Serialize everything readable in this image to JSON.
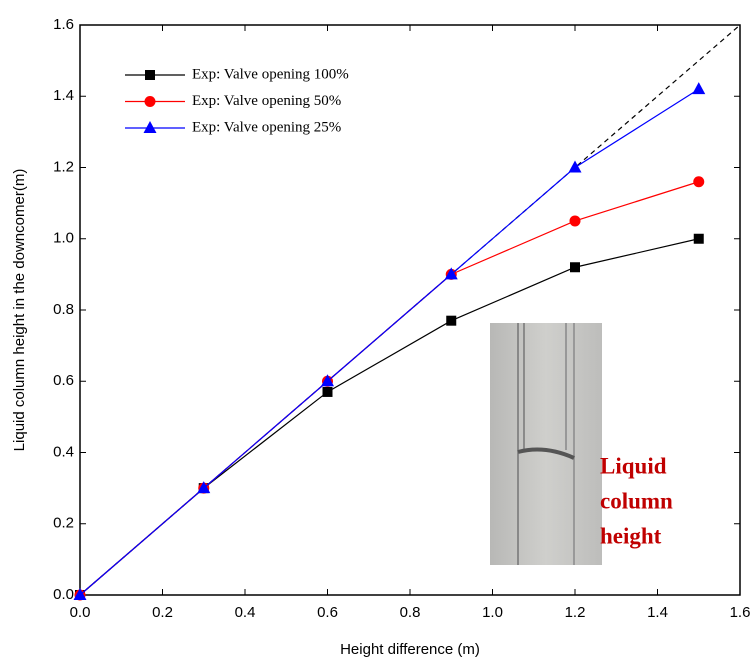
{
  "chart_data": {
    "type": "line",
    "x_label": "Height difference (m)",
    "y_label": "Liquid column height in the downcomer(m)",
    "xlim": [
      0,
      1.6
    ],
    "ylim": [
      0,
      1.6
    ],
    "xticks": [
      {
        "value": 0,
        "label": "0.0"
      },
      0.2,
      0.4,
      0.6,
      0.8,
      {
        "value": 1,
        "label": "1.0"
      },
      1.2,
      1.4,
      1.6
    ],
    "yticks": [
      {
        "value": 0,
        "label": "0.0"
      },
      0.2,
      0.4,
      0.6,
      0.8,
      {
        "value": 1,
        "label": "1.0"
      },
      1.2,
      1.4,
      1.6
    ],
    "reference_line": "dashed",
    "legend": "upper left",
    "series": [
      {
        "name": "Exp: Valve opening 100%",
        "color": "#000000",
        "marker": "square",
        "x": [
          0,
          0.3,
          0.6,
          0.9,
          1.2,
          1.5
        ],
        "values": [
          0,
          0.3,
          0.57,
          0.77,
          0.92,
          1.0
        ]
      },
      {
        "name": "Exp: Valve opening 50%",
        "color": "#ff0000",
        "marker": "circle",
        "x": [
          0,
          0.3,
          0.6,
          0.9,
          1.2,
          1.5
        ],
        "values": [
          0,
          0.3,
          0.6,
          0.9,
          1.05,
          1.16
        ]
      },
      {
        "name": "Exp: Valve opening 25%",
        "color": "#0000ff",
        "marker": "triangle",
        "x": [
          0,
          0.3,
          0.6,
          0.9,
          1.2,
          1.5
        ],
        "values": [
          0,
          0.3,
          0.6,
          0.9,
          1.2,
          1.42
        ]
      }
    ],
    "annotation": [
      "Liquid",
      "column",
      "height"
    ]
  }
}
